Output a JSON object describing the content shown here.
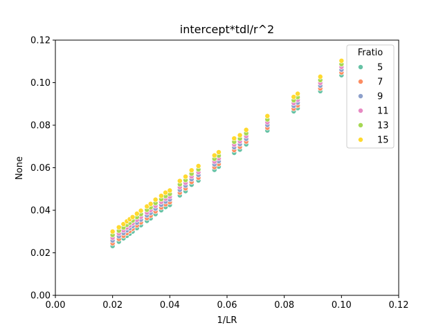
{
  "chart_data": {
    "type": "scatter",
    "title": "intercept*tdl/r^2",
    "xlabel": "1/LR",
    "ylabel": "None",
    "xlim": [
      0.0,
      0.12
    ],
    "ylim": [
      0.0,
      0.12
    ],
    "xticks": [
      "0.00",
      "0.02",
      "0.04",
      "0.06",
      "0.08",
      "0.10",
      "0.12"
    ],
    "yticks": [
      "0.00",
      "0.02",
      "0.04",
      "0.06",
      "0.08",
      "0.10",
      "0.12"
    ],
    "grid": false,
    "legend": {
      "title": "Fratio",
      "placement": "top-right",
      "entries": [
        "5",
        "7",
        "9",
        "11",
        "13",
        "15"
      ]
    },
    "x": [
      0.02,
      0.0222,
      0.0238,
      0.025,
      0.026,
      0.027,
      0.0285,
      0.0299,
      0.032,
      0.0333,
      0.035,
      0.037,
      0.0385,
      0.04,
      0.0435,
      0.0455,
      0.0476,
      0.05,
      0.0556,
      0.0571,
      0.0625,
      0.0645,
      0.0667,
      0.0741,
      0.0833,
      0.0847,
      0.0926,
      0.1
    ],
    "series": [
      {
        "name": "5",
        "color": "#66c2a5",
        "y": [
          0.0232,
          0.0252,
          0.0268,
          0.028,
          0.029,
          0.03,
          0.0316,
          0.033,
          0.035,
          0.0362,
          0.0382,
          0.04,
          0.0415,
          0.0425,
          0.047,
          0.049,
          0.052,
          0.054,
          0.059,
          0.0605,
          0.067,
          0.0685,
          0.071,
          0.0775,
          0.0865,
          0.088,
          0.096,
          0.1035
        ]
      },
      {
        "name": "7",
        "color": "#fc8d62",
        "y": [
          0.0245,
          0.0265,
          0.028,
          0.0293,
          0.0303,
          0.0313,
          0.0329,
          0.0343,
          0.0363,
          0.0375,
          0.0395,
          0.0413,
          0.0428,
          0.0438,
          0.0483,
          0.0503,
          0.0533,
          0.0553,
          0.0603,
          0.0618,
          0.0683,
          0.0698,
          0.0723,
          0.0788,
          0.0878,
          0.0893,
          0.0973,
          0.1048
        ]
      },
      {
        "name": "9",
        "color": "#8da0cb",
        "y": [
          0.0258,
          0.0278,
          0.0293,
          0.0306,
          0.0316,
          0.0326,
          0.0342,
          0.0356,
          0.0376,
          0.0388,
          0.0408,
          0.0426,
          0.0441,
          0.0451,
          0.0496,
          0.0516,
          0.0546,
          0.0566,
          0.0616,
          0.0631,
          0.0696,
          0.0711,
          0.0736,
          0.0801,
          0.0891,
          0.0906,
          0.0986,
          0.1061
        ]
      },
      {
        "name": "11",
        "color": "#e78ac3",
        "y": [
          0.0271,
          0.0291,
          0.0306,
          0.0319,
          0.0329,
          0.0339,
          0.0355,
          0.0369,
          0.0389,
          0.0401,
          0.0421,
          0.0439,
          0.0454,
          0.0464,
          0.0509,
          0.0529,
          0.0559,
          0.0579,
          0.0629,
          0.0644,
          0.0709,
          0.0724,
          0.0749,
          0.0814,
          0.0904,
          0.0919,
          0.0999,
          0.1074
        ]
      },
      {
        "name": "13",
        "color": "#a6d854",
        "y": [
          0.0284,
          0.0304,
          0.0319,
          0.0332,
          0.0342,
          0.0352,
          0.0368,
          0.0382,
          0.0402,
          0.0414,
          0.0434,
          0.0452,
          0.0467,
          0.0477,
          0.0522,
          0.0542,
          0.0572,
          0.0592,
          0.0642,
          0.0657,
          0.0722,
          0.0737,
          0.0762,
          0.0827,
          0.0917,
          0.0932,
          0.1012,
          0.1087
        ]
      },
      {
        "name": "15",
        "color": "#ffd92f",
        "y": [
          0.03,
          0.032,
          0.0335,
          0.0348,
          0.0358,
          0.0368,
          0.0384,
          0.0398,
          0.0418,
          0.043,
          0.045,
          0.0468,
          0.0483,
          0.0493,
          0.0538,
          0.0558,
          0.0588,
          0.0608,
          0.0658,
          0.0673,
          0.0738,
          0.0753,
          0.0778,
          0.0843,
          0.0933,
          0.0948,
          0.1028,
          0.1103
        ]
      }
    ]
  }
}
